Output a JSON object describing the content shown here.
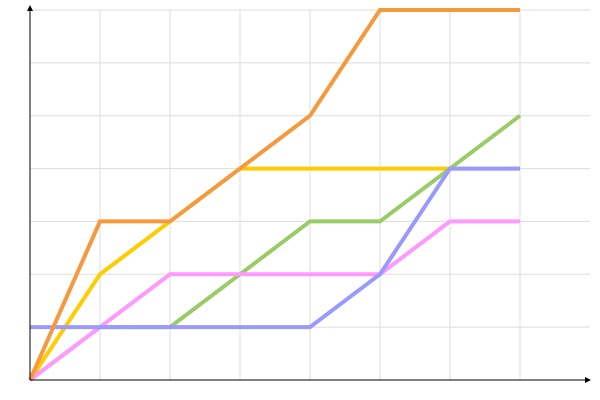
{
  "chart_data": {
    "type": "line",
    "x": [
      0,
      1,
      2,
      3,
      4,
      5,
      6,
      7
    ],
    "xlim": [
      0,
      8
    ],
    "ylim": [
      0,
      7
    ],
    "xticks": [
      1,
      2,
      3,
      4,
      5,
      6,
      7
    ],
    "yticks": [
      1,
      2,
      3,
      4,
      5,
      6,
      7
    ],
    "grid": true,
    "series": [
      {
        "color": "#ffcc00",
        "values": [
          0,
          2,
          3,
          4,
          4,
          4,
          4,
          4
        ]
      },
      {
        "color": "#99cc66",
        "values": [
          0,
          1,
          1,
          2,
          3,
          3,
          4,
          5
        ]
      },
      {
        "color": "#ff99ff",
        "values": [
          0,
          1,
          2,
          2,
          2,
          2,
          3,
          3
        ]
      },
      {
        "color": "#9999ff",
        "values": [
          1,
          1,
          1,
          1,
          1,
          2,
          4,
          4
        ]
      },
      {
        "color": "#f5993c",
        "values": [
          0,
          3,
          3,
          4,
          5,
          7,
          7,
          7
        ]
      }
    ]
  }
}
